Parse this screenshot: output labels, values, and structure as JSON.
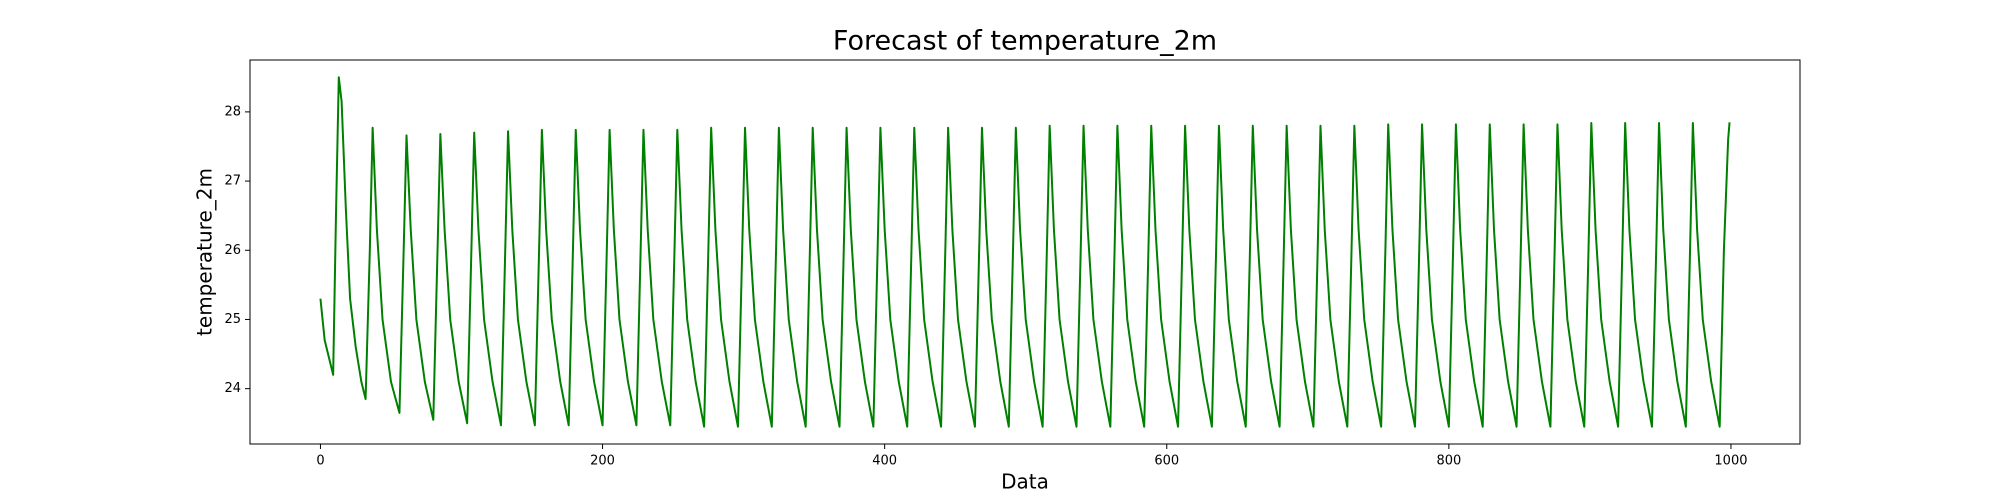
{
  "chart_data": {
    "type": "line",
    "title": "Forecast of temperature_2m",
    "x_label": "Data",
    "y_label": "temperature_2m",
    "xlim": [
      -49.95,
      1048.95
    ],
    "ylim": [
      23.2,
      28.75
    ],
    "xticks": [
      0,
      200,
      400,
      600,
      800,
      1000
    ],
    "yticks": [
      24,
      25,
      26,
      27,
      28
    ],
    "grid": false,
    "series": [
      {
        "name": "temperature_2m",
        "color": "#008000",
        "x": [
          0,
          3,
          6,
          9,
          11,
          13,
          15,
          18,
          21,
          25,
          29,
          32,
          35,
          37,
          40,
          44,
          50,
          56,
          59,
          61,
          64,
          68,
          74,
          80,
          83,
          85,
          88,
          92,
          98,
          104,
          107,
          109,
          112,
          116,
          122,
          128,
          131,
          133,
          136,
          140,
          146,
          152,
          155,
          157,
          160,
          164,
          170,
          176,
          179,
          181,
          184,
          188,
          194,
          200,
          203,
          205,
          208,
          212,
          218,
          224,
          227,
          229,
          232,
          236,
          242,
          248,
          251,
          253,
          256,
          260,
          266,
          272,
          275,
          277,
          280,
          284,
          290,
          296,
          299,
          301,
          304,
          308,
          314,
          320,
          323,
          325,
          328,
          332,
          338,
          344,
          347,
          349,
          352,
          356,
          362,
          368,
          371,
          373,
          376,
          380,
          386,
          392,
          395,
          397,
          400,
          404,
          410,
          416,
          419,
          421,
          424,
          428,
          434,
          440,
          443,
          445,
          448,
          452,
          458,
          464,
          467,
          469,
          472,
          476,
          482,
          488,
          491,
          493,
          496,
          500,
          506,
          512,
          515,
          517,
          520,
          524,
          530,
          536,
          539,
          541,
          544,
          548,
          554,
          560,
          563,
          565,
          568,
          572,
          578,
          584,
          587,
          589,
          592,
          596,
          602,
          608,
          611,
          613,
          616,
          620,
          626,
          632,
          635,
          637,
          640,
          644,
          650,
          656,
          659,
          661,
          664,
          668,
          674,
          680,
          683,
          685,
          688,
          692,
          698,
          704,
          707,
          709,
          712,
          716,
          722,
          728,
          731,
          733,
          736,
          740,
          746,
          752,
          755,
          757,
          760,
          764,
          770,
          776,
          779,
          781,
          784,
          788,
          794,
          800,
          803,
          805,
          808,
          812,
          818,
          824,
          827,
          829,
          832,
          836,
          842,
          848,
          851,
          853,
          856,
          860,
          866,
          872,
          875,
          877,
          880,
          884,
          890,
          896,
          899,
          901,
          904,
          908,
          914,
          920,
          923,
          925,
          928,
          932,
          938,
          944,
          947,
          949,
          952,
          956,
          962,
          968,
          971,
          973,
          976,
          980,
          986,
          992,
          995,
          998,
          999
        ],
        "values": [
          25.3,
          24.7,
          24.45,
          24.2,
          26.5,
          28.5,
          28.15,
          26.6,
          25.3,
          24.6,
          24.1,
          23.85,
          26.0,
          27.77,
          26.3,
          25.0,
          24.1,
          23.65,
          26.0,
          27.66,
          26.3,
          25.0,
          24.1,
          23.55,
          26.0,
          27.68,
          26.3,
          25.0,
          24.1,
          23.5,
          26.0,
          27.7,
          26.3,
          25.0,
          24.1,
          23.47,
          26.0,
          27.72,
          26.3,
          25.0,
          24.1,
          23.47,
          26.0,
          27.74,
          26.3,
          25.0,
          24.1,
          23.47,
          26.0,
          27.74,
          26.3,
          25.0,
          24.1,
          23.47,
          26.0,
          27.74,
          26.3,
          25.0,
          24.1,
          23.47,
          26.0,
          27.74,
          26.3,
          25.0,
          24.1,
          23.47,
          26.0,
          27.74,
          26.3,
          25.0,
          24.1,
          23.45,
          26.0,
          27.77,
          26.3,
          25.0,
          24.1,
          23.45,
          26.0,
          27.77,
          26.3,
          25.0,
          24.1,
          23.45,
          26.0,
          27.77,
          26.3,
          25.0,
          24.1,
          23.45,
          26.0,
          27.77,
          26.3,
          25.0,
          24.1,
          23.45,
          26.0,
          27.77,
          26.3,
          25.0,
          24.1,
          23.45,
          26.0,
          27.77,
          26.3,
          25.0,
          24.1,
          23.45,
          26.0,
          27.77,
          26.3,
          25.0,
          24.1,
          23.45,
          26.0,
          27.77,
          26.3,
          25.0,
          24.1,
          23.45,
          26.0,
          27.77,
          26.3,
          25.0,
          24.1,
          23.45,
          26.0,
          27.77,
          26.3,
          25.0,
          24.1,
          23.45,
          26.0,
          27.8,
          26.3,
          25.0,
          24.1,
          23.45,
          26.0,
          27.8,
          26.3,
          25.0,
          24.1,
          23.45,
          26.0,
          27.8,
          26.3,
          25.0,
          24.1,
          23.45,
          26.0,
          27.8,
          26.3,
          25.0,
          24.1,
          23.45,
          26.0,
          27.8,
          26.3,
          25.0,
          24.1,
          23.45,
          26.0,
          27.8,
          26.3,
          25.0,
          24.1,
          23.45,
          26.0,
          27.8,
          26.3,
          25.0,
          24.1,
          23.45,
          26.0,
          27.8,
          26.3,
          25.0,
          24.1,
          23.45,
          26.0,
          27.8,
          26.3,
          25.0,
          24.1,
          23.45,
          26.0,
          27.8,
          26.3,
          25.0,
          24.1,
          23.45,
          26.0,
          27.82,
          26.3,
          25.0,
          24.1,
          23.45,
          26.0,
          27.82,
          26.3,
          25.0,
          24.1,
          23.45,
          26.0,
          27.82,
          26.3,
          25.0,
          24.1,
          23.45,
          26.0,
          27.82,
          26.3,
          25.0,
          24.1,
          23.45,
          26.0,
          27.82,
          26.3,
          25.0,
          24.1,
          23.45,
          26.0,
          27.82,
          26.3,
          25.0,
          24.1,
          23.45,
          26.0,
          27.84,
          26.3,
          25.0,
          24.1,
          23.45,
          26.0,
          27.84,
          26.3,
          25.0,
          24.1,
          23.45,
          26.0,
          27.84,
          26.3,
          25.0,
          24.1,
          23.45,
          26.0,
          27.84,
          26.3,
          25.0,
          24.1,
          23.45,
          26.0,
          27.6,
          27.85
        ]
      }
    ]
  }
}
